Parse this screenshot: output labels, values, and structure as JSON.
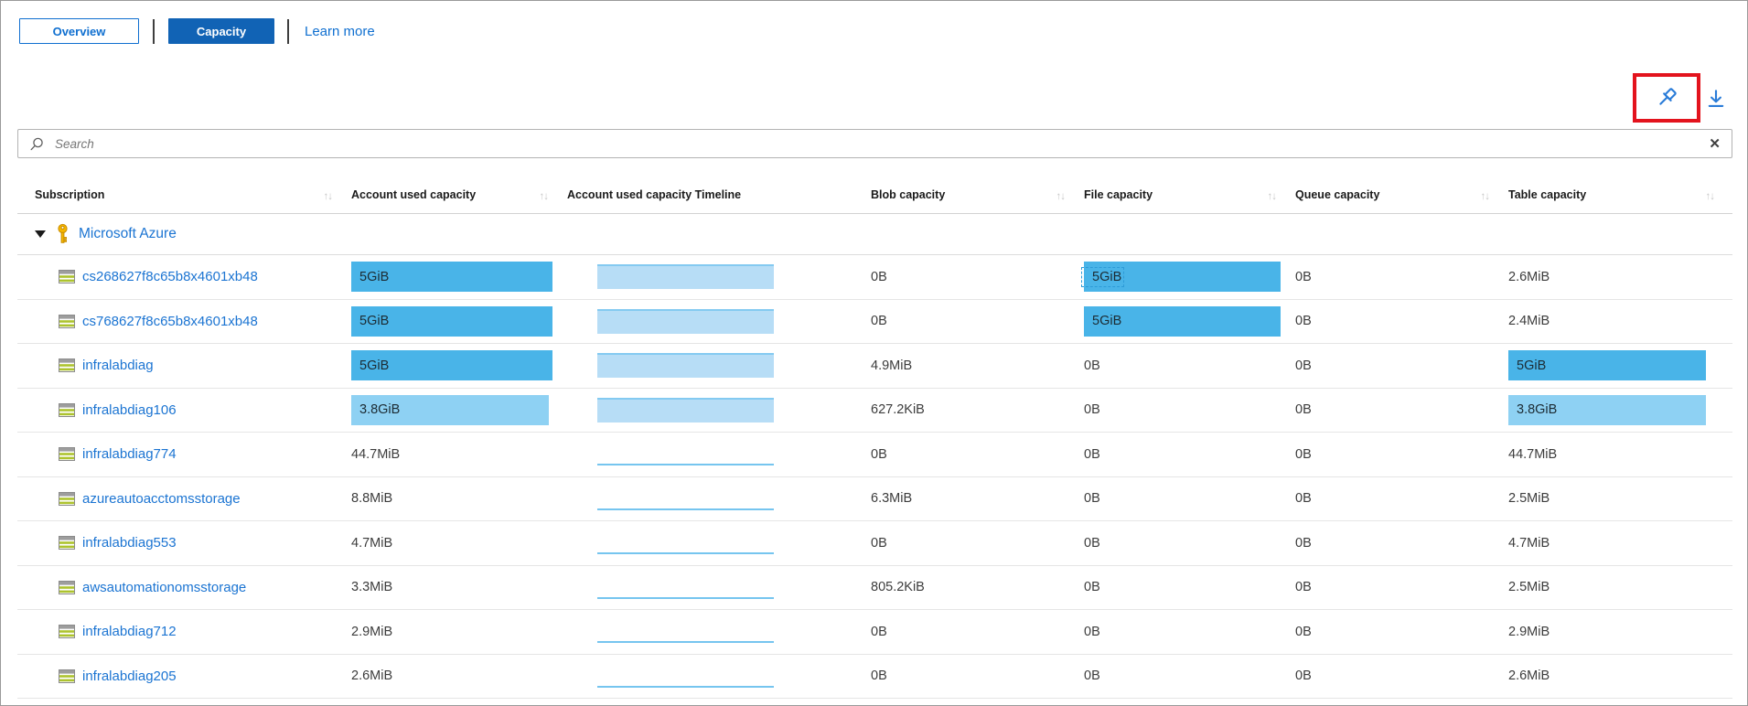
{
  "tabs": {
    "overview": "Overview",
    "capacity": "Capacity",
    "learn_more": "Learn more"
  },
  "search": {
    "placeholder": "Search",
    "clear_glyph": "✕"
  },
  "icons": {
    "pin": "pin-icon",
    "download": "download-icon",
    "pin_highlight_color": "#e3131d",
    "icon_color": "#2a7cd8"
  },
  "colors": {
    "accent_blue": "#1163b5",
    "link_blue": "#1b74d2",
    "bar_dark": "#49b4e8",
    "bar_light": "#8ed1f3",
    "timeline_fill": "#b7ddf6",
    "timeline_line": "#76c5ef"
  },
  "table": {
    "columns": [
      {
        "label": "Subscription",
        "sortable": true
      },
      {
        "label": "Account used capacity",
        "sortable": true
      },
      {
        "label": "Account used capacity Timeline",
        "sortable": false
      },
      {
        "label": "Blob capacity",
        "sortable": true
      },
      {
        "label": "File capacity",
        "sortable": true
      },
      {
        "label": "Queue capacity",
        "sortable": true
      },
      {
        "label": "Table capacity",
        "sortable": true
      }
    ],
    "sort_glyph": "↑↓",
    "group": {
      "label": "Microsoft Azure",
      "expanded": true
    },
    "rows": [
      {
        "name": "cs268627f8c65b8x4601xb48",
        "account": {
          "text": "5GiB",
          "bar": "dark",
          "pct": 100
        },
        "timeline": "area",
        "blob": {
          "text": "0B"
        },
        "file": {
          "text": "5GiB",
          "bar": "dark",
          "pct": 100,
          "focused": true
        },
        "queue": {
          "text": "0B"
        },
        "tbl": {
          "text": "2.6MiB"
        }
      },
      {
        "name": "cs768627f8c65b8x4601xb48",
        "account": {
          "text": "5GiB",
          "bar": "dark",
          "pct": 100
        },
        "timeline": "area",
        "blob": {
          "text": "0B"
        },
        "file": {
          "text": "5GiB",
          "bar": "dark",
          "pct": 100
        },
        "queue": {
          "text": "0B"
        },
        "tbl": {
          "text": "2.4MiB"
        }
      },
      {
        "name": "infralabdiag",
        "account": {
          "text": "5GiB",
          "bar": "dark",
          "pct": 100
        },
        "timeline": "area",
        "blob": {
          "text": "4.9MiB"
        },
        "file": {
          "text": "0B"
        },
        "queue": {
          "text": "0B"
        },
        "tbl": {
          "text": "5GiB",
          "bar": "dark",
          "pct": 94
        }
      },
      {
        "name": "infralabdiag106",
        "account": {
          "text": "3.8GiB",
          "bar": "light",
          "pct": 98
        },
        "timeline": "area",
        "blob": {
          "text": "627.2KiB"
        },
        "file": {
          "text": "0B"
        },
        "queue": {
          "text": "0B"
        },
        "tbl": {
          "text": "3.8GiB",
          "bar": "light",
          "pct": 94
        }
      },
      {
        "name": "infralabdiag774",
        "account": {
          "text": "44.7MiB"
        },
        "timeline": "flat",
        "blob": {
          "text": "0B"
        },
        "file": {
          "text": "0B"
        },
        "queue": {
          "text": "0B"
        },
        "tbl": {
          "text": "44.7MiB"
        }
      },
      {
        "name": "azureautoacctomsstorage",
        "account": {
          "text": "8.8MiB"
        },
        "timeline": "flat",
        "blob": {
          "text": "6.3MiB"
        },
        "file": {
          "text": "0B"
        },
        "queue": {
          "text": "0B"
        },
        "tbl": {
          "text": "2.5MiB"
        }
      },
      {
        "name": "infralabdiag553",
        "account": {
          "text": "4.7MiB"
        },
        "timeline": "flat",
        "blob": {
          "text": "0B"
        },
        "file": {
          "text": "0B"
        },
        "queue": {
          "text": "0B"
        },
        "tbl": {
          "text": "4.7MiB"
        }
      },
      {
        "name": "awsautomationomsstorage",
        "account": {
          "text": "3.3MiB"
        },
        "timeline": "flat",
        "blob": {
          "text": "805.2KiB"
        },
        "file": {
          "text": "0B"
        },
        "queue": {
          "text": "0B"
        },
        "tbl": {
          "text": "2.5MiB"
        }
      },
      {
        "name": "infralabdiag712",
        "account": {
          "text": "2.9MiB"
        },
        "timeline": "flat",
        "blob": {
          "text": "0B"
        },
        "file": {
          "text": "0B"
        },
        "queue": {
          "text": "0B"
        },
        "tbl": {
          "text": "2.9MiB"
        }
      },
      {
        "name": "infralabdiag205",
        "account": {
          "text": "2.6MiB"
        },
        "timeline": "flat",
        "blob": {
          "text": "0B"
        },
        "file": {
          "text": "0B"
        },
        "queue": {
          "text": "0B"
        },
        "tbl": {
          "text": "2.6MiB"
        }
      }
    ]
  }
}
